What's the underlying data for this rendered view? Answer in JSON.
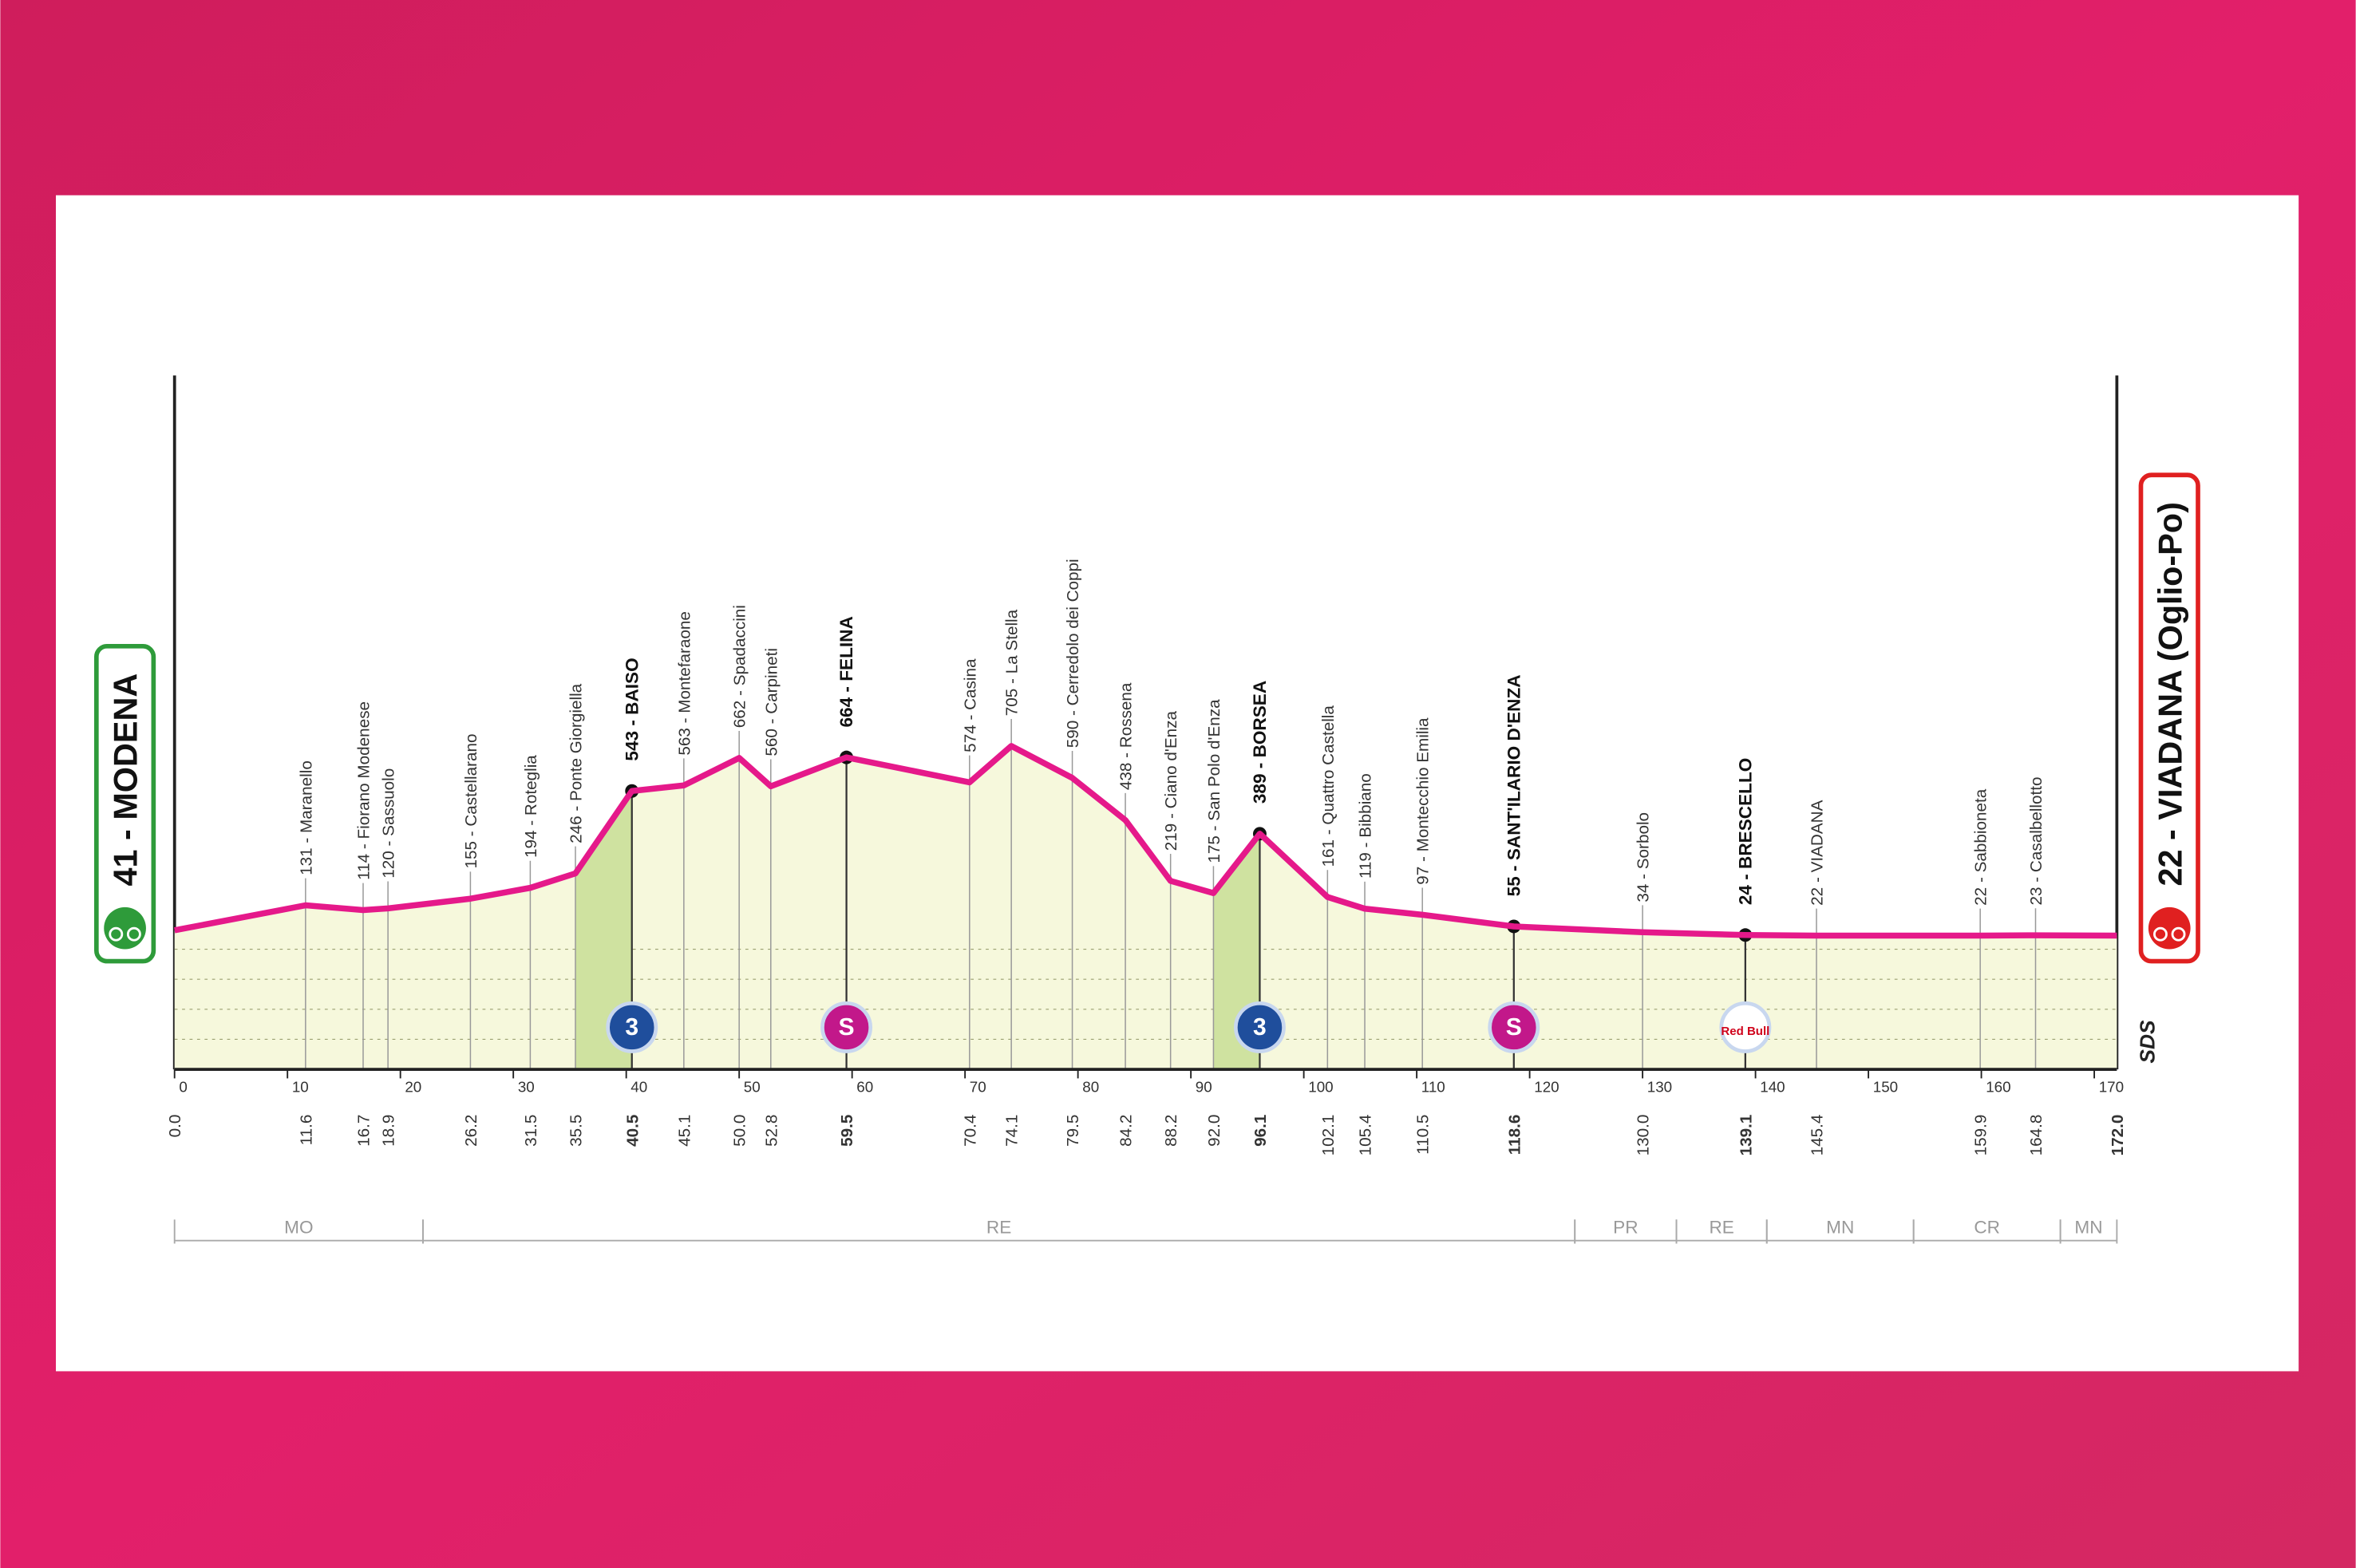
{
  "chart_data": {
    "type": "area",
    "x": [
      0.0,
      11.6,
      16.7,
      18.9,
      26.2,
      31.5,
      35.5,
      40.5,
      45.1,
      50.0,
      52.8,
      59.5,
      70.4,
      74.1,
      79.5,
      84.2,
      88.2,
      92.0,
      96.1,
      102.1,
      105.4,
      110.5,
      118.6,
      130.0,
      139.1,
      145.4,
      159.9,
      164.8,
      172.0
    ],
    "x_labels": [
      "0.0",
      "11.6",
      "16.7",
      "18.9",
      "26.2",
      "31.5",
      "35.5",
      "40.5",
      "45.1",
      "50.0",
      "52.8",
      "59.5",
      "70.4",
      "74.1",
      "79.5",
      "84.2",
      "88.2",
      "92.0",
      "96.1",
      "102.1",
      "105.4",
      "110.5",
      "118.6",
      "130.0",
      "139.1",
      "145.4",
      "159.9",
      "164.8",
      "172.0"
    ],
    "values": [
      41,
      131,
      114,
      120,
      155,
      194,
      246,
      543,
      563,
      662,
      560,
      664,
      574,
      705,
      590,
      438,
      219,
      175,
      389,
      161,
      119,
      97,
      55,
      34,
      24,
      22,
      22,
      23,
      22
    ],
    "value_labels": [
      "41 - MODENA",
      "131 - Maranello",
      "114 - Fiorano Modenese",
      "120 - Sassuolo",
      "155 - Castellarano",
      "194 - Roteglia",
      "246 - Ponte Giorgiella",
      "543 - BAISO",
      "563 - Montefaraone",
      "662 - Spadaccini",
      "560 - Carpineti",
      "664 - FELINA",
      "574 - Casina",
      "705 - La Stella",
      "590 - Cerredolo dei Coppi",
      "438 - Rossena",
      "219 - Ciano d'Enza",
      "175 - San Polo d'Enza",
      "389 - BORSEA",
      "161 - Quattro Castella",
      "119 - Bibbiano",
      "97 - Montecchio Emilia",
      "55 - SANT'ILARIO D'ENZA",
      "34 - Sorbolo",
      "24 - BRESCELLO",
      "22 - VIADANA",
      "22 - Sabbioneta",
      "23 - Casalbellotto",
      "22 - VIADANA (Oglio-Po)"
    ],
    "bold": [
      true,
      false,
      false,
      false,
      false,
      false,
      false,
      true,
      false,
      false,
      false,
      true,
      false,
      false,
      false,
      false,
      false,
      false,
      true,
      false,
      false,
      false,
      true,
      false,
      true,
      false,
      false,
      false,
      true
    ],
    "badges": [
      null,
      null,
      null,
      null,
      null,
      null,
      null,
      {
        "text": "3",
        "color": "#1f4e9c"
      },
      null,
      null,
      null,
      {
        "text": "S",
        "color": "#c2188a"
      },
      null,
      null,
      null,
      null,
      null,
      null,
      {
        "text": "3",
        "color": "#1f4e9c"
      },
      null,
      null,
      null,
      {
        "text": "S",
        "color": "#c2188a"
      },
      null,
      {
        "text": "Red Bull",
        "color": "#ffffff"
      },
      null,
      null,
      null,
      null
    ],
    "climbs": [
      {
        "from": 35.5,
        "to": 40.5
      },
      {
        "from": 92.0,
        "to": 96.1
      }
    ],
    "provinces": [
      {
        "name": "MO",
        "from": 0,
        "to": 22
      },
      {
        "name": "RE",
        "from": 22,
        "to": 124
      },
      {
        "name": "PR",
        "from": 124,
        "to": 133
      },
      {
        "name": "RE",
        "from": 133,
        "to": 141
      },
      {
        "name": "MN",
        "from": 141,
        "to": 154
      },
      {
        "name": "CR",
        "from": 154,
        "to": 167
      },
      {
        "name": "MN",
        "from": 167,
        "to": 172
      }
    ],
    "xlim": [
      0,
      172
    ],
    "xticks": [
      0,
      10,
      20,
      30,
      40,
      50,
      60,
      70,
      80,
      90,
      100,
      110,
      120,
      130,
      140,
      150,
      160,
      170
    ],
    "ylim": [
      -460,
      2040
    ],
    "color": "#e5198a",
    "fill": "#f6f8dc",
    "climb_color": "#cfe2a0",
    "start_color": "#2e9b3a",
    "finish_color": "#e02020",
    "logo": "SDS"
  }
}
